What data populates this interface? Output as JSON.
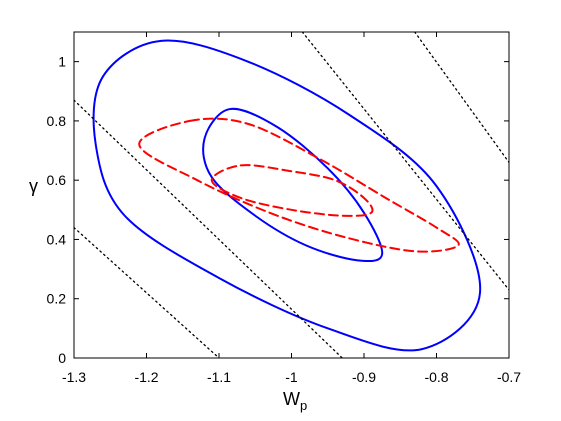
{
  "chart_data": {
    "type": "line",
    "xlabel": "W",
    "xlabel_subscript": "p",
    "ylabel": "γ",
    "xlim": [
      -1.3,
      -0.7
    ],
    "ylim": [
      0,
      1.1
    ],
    "xticks": [
      "-1.3",
      "-1.2",
      "-1.1",
      "-1",
      "-0.9",
      "-0.8",
      "-0.7"
    ],
    "xtick_values": [
      -1.3,
      -1.2,
      -1.1,
      -1.0,
      -0.9,
      -0.8,
      -0.7
    ],
    "yticks": [
      "0",
      "0.2",
      "0.4",
      "0.6",
      "0.8",
      "1"
    ],
    "ytick_values": [
      0,
      0.2,
      0.4,
      0.6,
      0.8,
      1.0
    ],
    "grid": false,
    "colors": {
      "ellipse_blue": "#0000ff",
      "ellipse_red": "#ff0000",
      "dotted_lines": "#000000"
    },
    "series": [
      {
        "style": "solid",
        "color": "#0000ff",
        "shape": "ellipse",
        "points": [
          [
            -1.18,
            1.07
          ],
          [
            -1.06,
            1.0
          ],
          [
            -0.92,
            0.82
          ],
          [
            -0.8,
            0.58
          ],
          [
            -0.74,
            0.22
          ],
          [
            -0.82,
            0.03
          ],
          [
            -0.95,
            0.1
          ],
          [
            -1.1,
            0.27
          ],
          [
            -1.23,
            0.48
          ],
          [
            -1.27,
            0.72
          ],
          [
            -1.26,
            0.95
          ]
        ]
      },
      {
        "style": "solid",
        "color": "#0000ff",
        "shape": "ellipse",
        "points": [
          [
            -1.085,
            0.84
          ],
          [
            -1.02,
            0.78
          ],
          [
            -0.95,
            0.64
          ],
          [
            -0.9,
            0.49
          ],
          [
            -0.875,
            0.35
          ],
          [
            -0.91,
            0.33
          ],
          [
            -0.98,
            0.38
          ],
          [
            -1.05,
            0.48
          ],
          [
            -1.11,
            0.61
          ],
          [
            -1.12,
            0.74
          ]
        ]
      },
      {
        "style": "dashed",
        "color": "#ff0000",
        "shape": "ellipse",
        "points": [
          [
            -1.14,
            0.8
          ],
          [
            -1.06,
            0.79
          ],
          [
            -0.96,
            0.67
          ],
          [
            -0.87,
            0.54
          ],
          [
            -0.8,
            0.44
          ],
          [
            -0.77,
            0.38
          ],
          [
            -0.83,
            0.36
          ],
          [
            -0.93,
            0.41
          ],
          [
            -1.03,
            0.49
          ],
          [
            -1.13,
            0.6
          ],
          [
            -1.21,
            0.72
          ]
        ]
      },
      {
        "style": "dashed",
        "color": "#ff0000",
        "shape": "ellipse",
        "points": [
          [
            -1.07,
            0.65
          ],
          [
            -1.0,
            0.63
          ],
          [
            -0.94,
            0.6
          ],
          [
            -0.9,
            0.54
          ],
          [
            -0.89,
            0.49
          ],
          [
            -0.93,
            0.48
          ],
          [
            -1.0,
            0.5
          ],
          [
            -1.07,
            0.54
          ],
          [
            -1.11,
            0.6
          ]
        ]
      },
      {
        "style": "dotted",
        "color": "#000000",
        "shape": "line",
        "points": [
          [
            -1.3,
            0.44
          ],
          [
            -1.1,
            0.0
          ]
        ]
      },
      {
        "style": "dotted",
        "color": "#000000",
        "shape": "line",
        "points": [
          [
            -1.3,
            0.87
          ],
          [
            -0.93,
            0.0
          ]
        ]
      },
      {
        "style": "dotted",
        "color": "#000000",
        "shape": "line",
        "points": [
          [
            -0.985,
            1.1
          ],
          [
            -0.7,
            0.23
          ]
        ]
      },
      {
        "style": "dotted",
        "color": "#000000",
        "shape": "line",
        "points": [
          [
            -0.83,
            1.1
          ],
          [
            -0.7,
            0.66
          ]
        ]
      }
    ]
  }
}
